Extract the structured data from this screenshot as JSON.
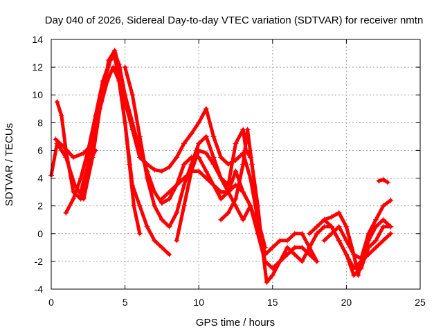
{
  "chart_data": {
    "type": "scatter",
    "title": "Day 040 of 2026, Sidereal Day-to-day VTEC variation (SDTVAR) for receiver nmtn",
    "xlabel": "GPS time / hours",
    "ylabel": "SDTVAR / TECUs",
    "xlim": [
      0,
      25
    ],
    "ylim": [
      -4,
      14
    ],
    "xticks": [
      0,
      5,
      10,
      15,
      20,
      25
    ],
    "yticks": [
      -4,
      -2,
      0,
      2,
      4,
      6,
      8,
      10,
      12,
      14
    ],
    "grid": true,
    "marker": "plus",
    "color": "#ff0000",
    "series": [
      {
        "name": "s1",
        "x": [
          0.0,
          0.4,
          1.0,
          1.6,
          2.2,
          2.8,
          3.3,
          3.8,
          4.2,
          4.6,
          5.0,
          5.5,
          6.0,
          6.5,
          7.0,
          7.5,
          8.0
        ],
        "y": [
          4.2,
          6.5,
          5.5,
          3.5,
          2.5,
          5.5,
          9.0,
          11.0,
          12.0,
          11.0,
          8.0,
          3.5,
          2.0,
          0.5,
          -0.5,
          -1.0,
          -1.5
        ]
      },
      {
        "name": "s2",
        "x": [
          0.3,
          0.8,
          1.5,
          2.2,
          2.8,
          3.4,
          3.9,
          4.3,
          4.6,
          5.0,
          5.5,
          6.0,
          6.5,
          7.0,
          7.5,
          8.0,
          8.5,
          9.0,
          9.5,
          10.0,
          10.5,
          11.0,
          11.5,
          12.0,
          12.5,
          13.0,
          13.5,
          14.0,
          14.5
        ],
        "y": [
          6.8,
          6.3,
          5.5,
          5.8,
          6.5,
          9.5,
          12.5,
          13.2,
          12.0,
          9.5,
          7.5,
          5.5,
          5.0,
          4.6,
          4.5,
          4.8,
          5.5,
          6.5,
          7.2,
          8.0,
          9.0,
          7.0,
          5.5,
          5.0,
          5.3,
          5.8,
          4.0,
          1.0,
          -1.0
        ]
      },
      {
        "name": "s3",
        "x": [
          1.0,
          1.5,
          2.0,
          2.5,
          3.0,
          3.5,
          4.0,
          4.3,
          4.6,
          5.0,
          5.5,
          6.0,
          6.5,
          7.0,
          7.5,
          8.0,
          8.5,
          9.0,
          9.5,
          10.0,
          10.5,
          11.0,
          11.5,
          12.0,
          12.5,
          13.0,
          13.5,
          14.0,
          14.5
        ],
        "y": [
          1.5,
          2.5,
          4.0,
          6.0,
          8.5,
          11.0,
          12.5,
          13.0,
          12.2,
          10.0,
          8.0,
          6.0,
          4.5,
          3.0,
          2.2,
          2.5,
          3.5,
          5.0,
          5.5,
          5.5,
          4.5,
          3.5,
          2.5,
          3.0,
          4.5,
          3.0,
          2.0,
          0.0,
          -2.0
        ]
      },
      {
        "name": "s4",
        "x": [
          2.0,
          2.5,
          3.0,
          3.5,
          4.0,
          4.3,
          4.6,
          5.0,
          5.3,
          5.6,
          6.0
        ],
        "y": [
          3.0,
          5.0,
          8.0,
          10.5,
          12.5,
          12.8,
          11.0,
          8.0,
          5.0,
          2.0,
          0.0
        ]
      },
      {
        "name": "s5",
        "x": [
          5.0,
          5.5,
          6.0,
          6.5,
          7.0,
          7.5,
          8.0,
          8.5,
          9.0,
          9.5,
          10.0,
          10.5,
          11.0,
          11.5,
          12.0,
          12.5,
          13.0,
          13.5,
          14.0,
          14.5,
          15.0,
          15.5,
          16.0,
          16.5,
          17.0,
          17.5,
          18.0
        ],
        "y": [
          12.0,
          10.0,
          7.0,
          4.0,
          2.0,
          1.0,
          0.5,
          1.5,
          3.5,
          5.0,
          6.5,
          7.0,
          5.5,
          4.0,
          3.0,
          2.0,
          1.0,
          2.0,
          0.0,
          -2.0,
          -2.5,
          -2.0,
          -1.5,
          -1.0,
          -1.0,
          -1.5,
          -2.0
        ]
      },
      {
        "name": "s6",
        "x": [
          7.5,
          8.0,
          8.5,
          9.0,
          9.5,
          10.0,
          10.5,
          11.0,
          11.5,
          12.0,
          12.5,
          13.0,
          13.5,
          14.0,
          14.5,
          15.0,
          15.5,
          16.0,
          16.5,
          17.0,
          17.5,
          18.0
        ],
        "y": [
          2.5,
          3.0,
          3.5,
          4.0,
          4.5,
          4.5,
          4.0,
          3.5,
          3.0,
          3.0,
          3.5,
          3.0,
          2.0,
          0.5,
          -1.5,
          -1.0,
          -0.5,
          -0.5,
          0.0,
          0.0,
          -1.0,
          -2.0
        ]
      },
      {
        "name": "s7",
        "x": [
          8.5,
          9.0,
          9.5,
          10.0,
          10.5,
          11.0,
          11.5,
          12.0,
          12.5,
          13.0,
          13.2,
          13.5
        ],
        "y": [
          -0.5,
          2.0,
          4.5,
          6.0,
          5.8,
          5.0,
          4.0,
          3.5,
          6.5,
          7.5,
          6.0,
          5.5
        ]
      },
      {
        "name": "s8",
        "x": [
          11.5,
          12.0,
          12.5,
          13.0,
          13.3,
          13.6,
          14.0,
          14.3,
          14.6,
          15.0,
          15.5,
          16.0,
          16.5,
          17.0,
          17.5,
          18.0,
          18.5,
          19.0,
          19.5,
          20.0,
          20.5,
          21.0,
          21.5,
          22.0,
          22.5,
          23.0
        ],
        "y": [
          1.0,
          1.5,
          2.5,
          5.0,
          7.5,
          5.0,
          2.0,
          -1.0,
          -3.5,
          -3.0,
          -2.0,
          -1.0,
          -1.5,
          -2.0,
          -1.0,
          0.0,
          0.5,
          0.5,
          -0.5,
          -1.5,
          -3.0,
          -2.5,
          -1.0,
          -0.5,
          0.5,
          0.5
        ]
      },
      {
        "name": "s9",
        "x": [
          17.5,
          18.0,
          18.5,
          19.0,
          19.5,
          20.0,
          20.5,
          21.0,
          21.5,
          22.0,
          22.5,
          23.0
        ],
        "y": [
          0.0,
          0.5,
          1.0,
          0.5,
          -0.5,
          -1.5,
          -2.5,
          -2.0,
          -1.5,
          -1.0,
          -0.5,
          0.0
        ]
      },
      {
        "name": "s10",
        "x": [
          18.5,
          19.0,
          19.5,
          20.0,
          20.5,
          21.0,
          21.5,
          22.0,
          22.5,
          23.0
        ],
        "y": [
          -0.5,
          0.0,
          0.5,
          -0.5,
          -1.5,
          -1.8,
          0.0,
          1.0,
          2.0,
          2.4
        ]
      },
      {
        "name": "s11",
        "x": [
          18.5,
          19.0,
          19.5,
          20.0,
          20.5,
          20.8,
          21.0,
          21.5,
          22.0,
          22.5,
          23.0
        ],
        "y": [
          1.0,
          1.2,
          1.5,
          0.5,
          -1.5,
          -3.0,
          -2.0,
          -0.5,
          0.5,
          1.0,
          0.5
        ]
      },
      {
        "name": "s12",
        "x": [
          0.4,
          0.7,
          1.0,
          1.5,
          2.0,
          2.5,
          3.0
        ],
        "y": [
          9.5,
          8.5,
          6.0,
          3.0,
          2.5,
          5.0,
          6.0
        ]
      },
      {
        "name": "s13",
        "x": [
          22.2,
          22.5,
          22.8
        ],
        "y": [
          3.8,
          3.9,
          3.7
        ]
      }
    ]
  }
}
